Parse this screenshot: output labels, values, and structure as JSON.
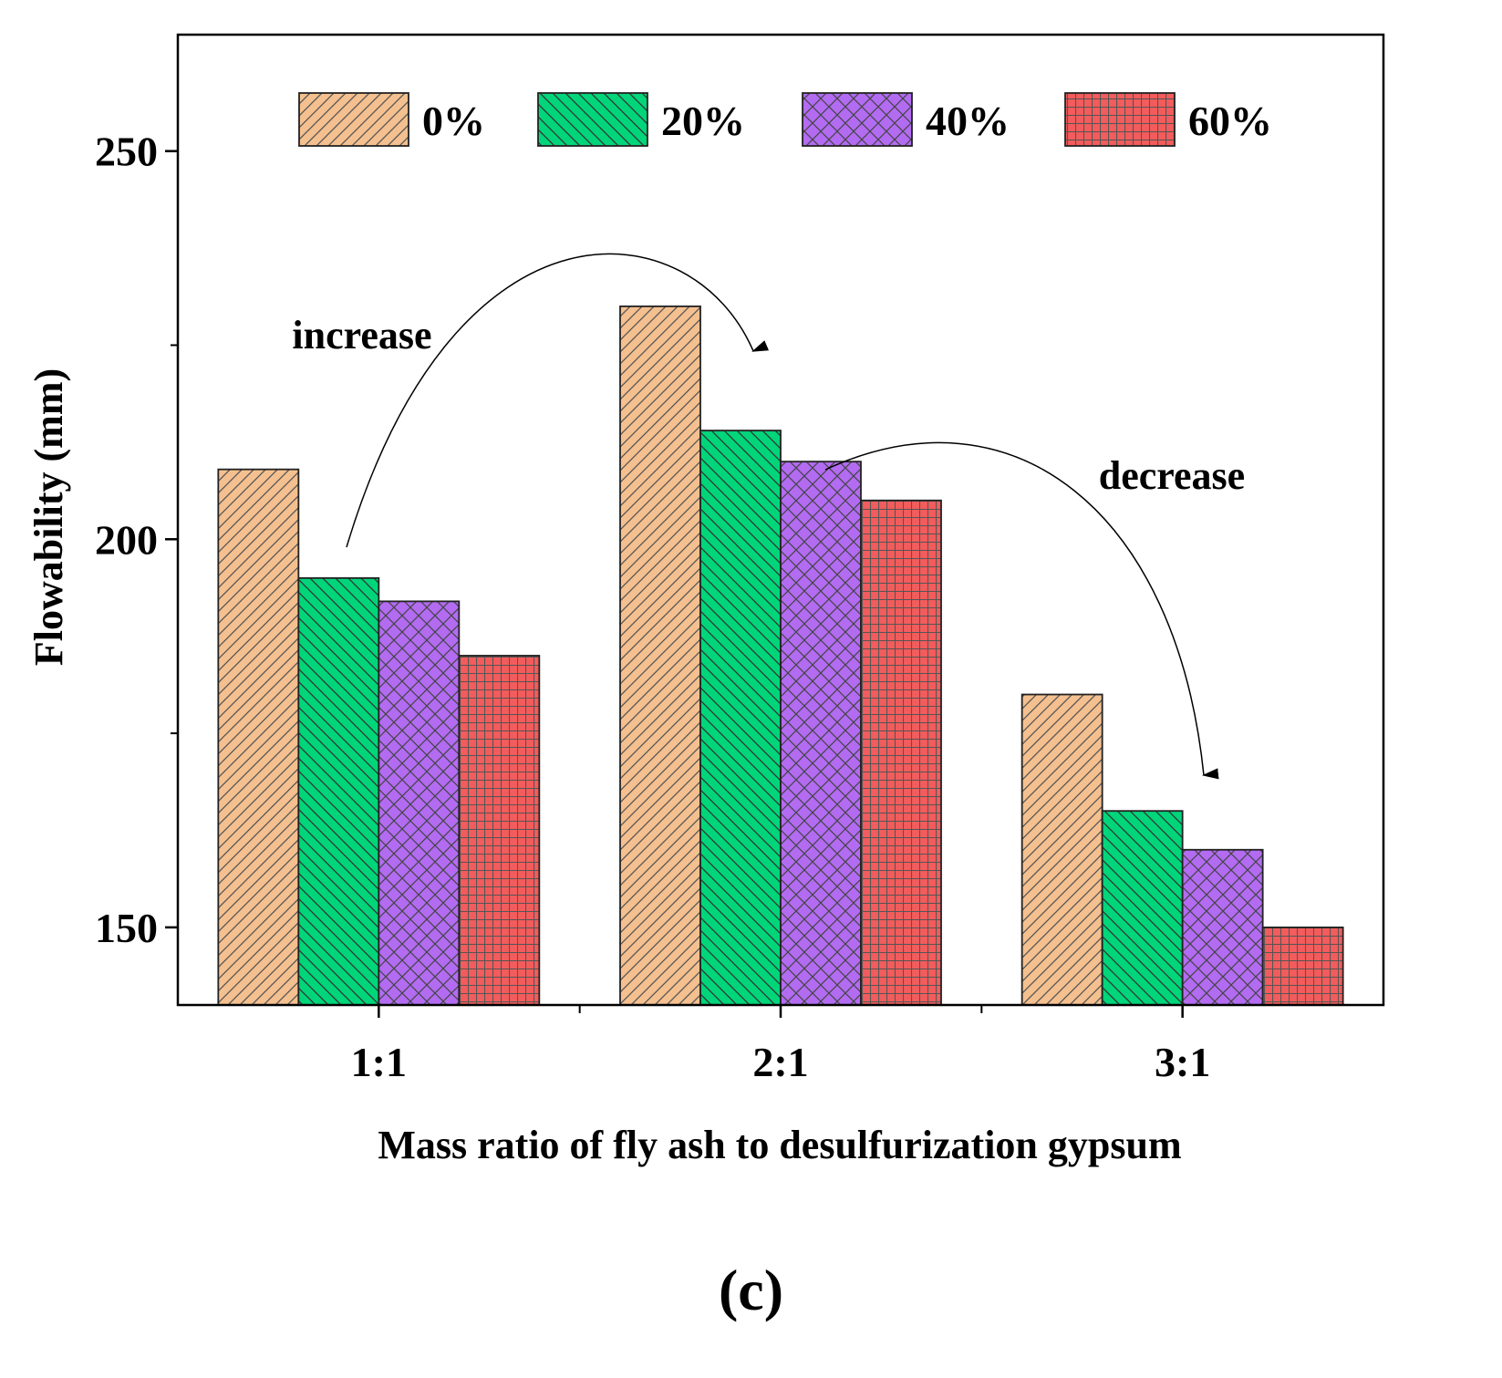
{
  "chart_data": {
    "type": "bar",
    "title": "",
    "xlabel": "Mass ratio of fly ash to desulfurization gypsum",
    "ylabel": "Flowability (mm)",
    "categories": [
      "1:1",
      "2:1",
      "3:1"
    ],
    "ylim": [
      140,
      265
    ],
    "yticks": [
      150,
      200,
      250
    ],
    "grid": false,
    "legend_position": "top",
    "series": [
      {
        "name": "0%",
        "values": [
          209,
          230,
          180
        ],
        "color": "#f5c08f",
        "pattern": "diagonal"
      },
      {
        "name": "20%",
        "values": [
          195,
          214,
          165
        ],
        "color": "#00d57a",
        "pattern": "backdiagonal"
      },
      {
        "name": "40%",
        "values": [
          192,
          210,
          160
        ],
        "color": "#b36bf2",
        "pattern": "crosshatch"
      },
      {
        "name": "60%",
        "values": [
          185,
          205,
          150
        ],
        "color": "#f25c5c",
        "pattern": "grid"
      }
    ],
    "annotations": [
      {
        "text": "increase",
        "from": "1:1",
        "to": "2:1"
      },
      {
        "text": "decrease",
        "from": "2:1",
        "to": "3:1"
      }
    ]
  },
  "caption": "(c)"
}
